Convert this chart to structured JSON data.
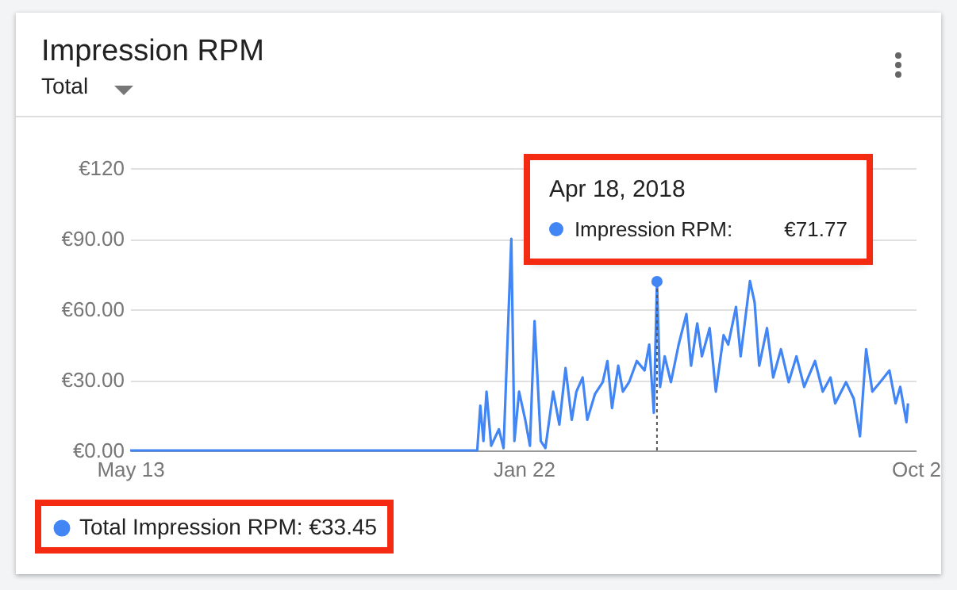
{
  "chart_data": {
    "type": "line",
    "title": "Impression RPM",
    "subtitle": "Total",
    "x": [
      "2017-05-13",
      "2017-12-23",
      "2017-12-25",
      "2017-12-27",
      "2017-12-29",
      "2018-01-01",
      "2018-01-06",
      "2018-01-09",
      "2018-01-14",
      "2018-01-16",
      "2018-01-19",
      "2018-01-23",
      "2018-01-26",
      "2018-01-29",
      "2018-02-02",
      "2018-02-05",
      "2018-02-10",
      "2018-02-14",
      "2018-02-18",
      "2018-02-22",
      "2018-02-25",
      "2018-03-01",
      "2018-03-04",
      "2018-03-09",
      "2018-03-14",
      "2018-03-17",
      "2018-03-20",
      "2018-03-24",
      "2018-03-27",
      "2018-03-31",
      "2018-04-05",
      "2018-04-10",
      "2018-04-13",
      "2018-04-16",
      "2018-04-18",
      "2018-04-20",
      "2018-04-23",
      "2018-04-27",
      "2018-05-02",
      "2018-05-07",
      "2018-05-10",
      "2018-05-14",
      "2018-05-17",
      "2018-05-22",
      "2018-05-26",
      "2018-05-31",
      "2018-06-03",
      "2018-06-08",
      "2018-06-11",
      "2018-06-17",
      "2018-06-20",
      "2018-06-23",
      "2018-06-28",
      "2018-07-02",
      "2018-07-07",
      "2018-07-12",
      "2018-07-17",
      "2018-07-22",
      "2018-07-29",
      "2018-08-03",
      "2018-08-08",
      "2018-08-11",
      "2018-08-18",
      "2018-08-23",
      "2018-08-27",
      "2018-08-31",
      "2018-09-04",
      "2018-09-09",
      "2018-09-15",
      "2018-09-19",
      "2018-09-22",
      "2018-09-26",
      "2018-09-27"
    ],
    "series": [
      {
        "name": "Total Impression RPM: €33.45",
        "color": "#4285f4",
        "values": [
          0,
          0,
          19,
          4,
          25,
          2,
          9,
          1,
          90,
          4,
          25,
          13,
          2,
          55,
          4,
          1,
          25,
          11,
          35,
          13,
          25,
          31,
          13,
          24,
          29,
          38,
          18,
          36,
          25,
          29,
          38,
          34,
          45,
          16,
          71.77,
          27,
          40,
          29,
          45,
          58,
          36,
          54,
          40,
          52,
          25,
          49,
          45,
          61,
          40,
          72,
          63,
          36,
          52,
          31,
          43,
          29,
          40,
          27,
          38,
          25,
          31,
          20,
          29,
          22,
          6,
          43,
          25,
          29,
          34,
          20,
          27,
          12,
          20
        ]
      }
    ],
    "xlim": [
      "2017-05-13",
      "2018-10-02"
    ],
    "xticks": [
      {
        "value": "2017-05-13",
        "label": "May 13"
      },
      {
        "value": "2018-01-22",
        "label": "Jan 22"
      },
      {
        "value": "2018-10-02",
        "label": "Oct 2"
      }
    ],
    "ylim": [
      0,
      120
    ],
    "yticks": [
      {
        "value": 0,
        "label": "€0.00"
      },
      {
        "value": 30,
        "label": "€30.00"
      },
      {
        "value": 60,
        "label": "€60.00"
      },
      {
        "value": 90,
        "label": "€90.00"
      },
      {
        "value": 120,
        "label": "€120"
      }
    ],
    "grid": "y",
    "legend": "bottom left",
    "marker": "none",
    "line_style": "solid",
    "ref_lines": [
      {
        "axis": "x",
        "value": "2018-04-18",
        "color": "#555555",
        "line_style": "dotted"
      }
    ],
    "annotations": [
      "Apr 18, 2018",
      "Impression RPM:",
      "€71.77"
    ]
  }
}
